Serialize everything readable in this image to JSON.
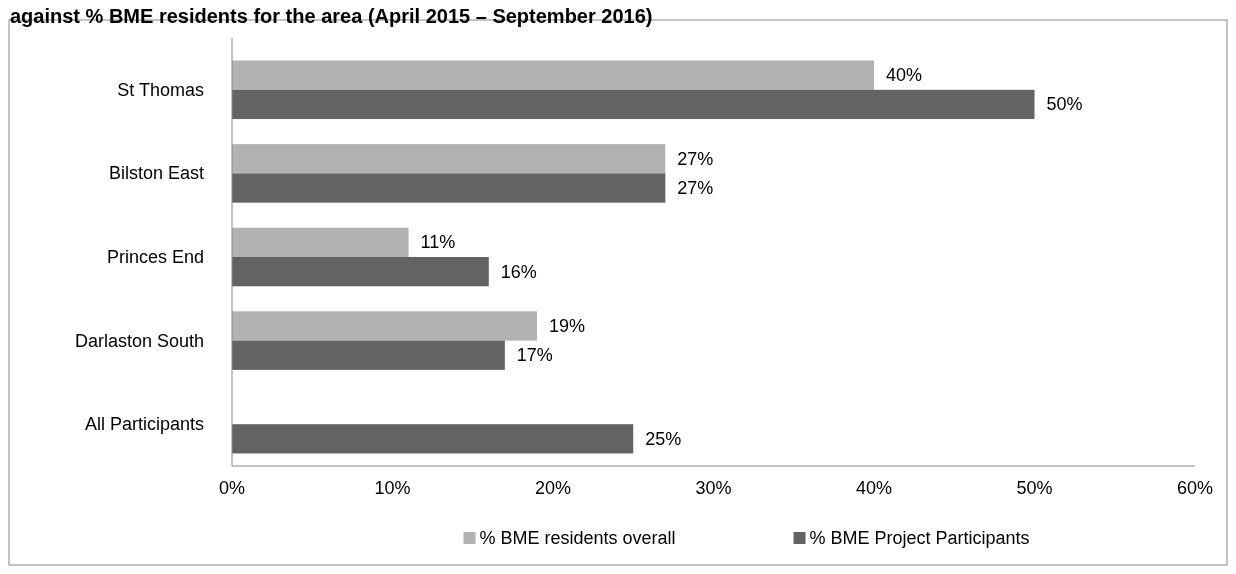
{
  "chart_data": {
    "type": "bar",
    "orientation": "horizontal",
    "title": "against % BME residents for the area (April 2015 – September 2016)",
    "categories": [
      "St Thomas",
      "Bilston East",
      "Princes End",
      "Darlaston South",
      "All Participants"
    ],
    "series": [
      {
        "name": "% BME residents overall",
        "color": "#b2b2b2",
        "values": [
          40,
          27,
          11,
          19,
          null
        ]
      },
      {
        "name": "% BME Project Participants",
        "color": "#636363",
        "values": [
          50,
          27,
          16,
          17,
          25
        ]
      }
    ],
    "xlim": [
      0,
      60
    ],
    "xticks": [
      {
        "value": 0,
        "label": "0%"
      },
      {
        "value": 10,
        "label": "10%"
      },
      {
        "value": 20,
        "label": "20%"
      },
      {
        "value": 30,
        "label": "30%"
      },
      {
        "value": 40,
        "label": "40%"
      },
      {
        "value": 50,
        "label": "50%"
      },
      {
        "value": 60,
        "label": "60%"
      }
    ],
    "value_labels": [
      [
        "40%",
        "27%",
        "11%",
        "19%",
        null
      ],
      [
        "50%",
        "27%",
        "16%",
        "17%",
        "25%"
      ]
    ],
    "grid": false,
    "legend": "bottom"
  }
}
